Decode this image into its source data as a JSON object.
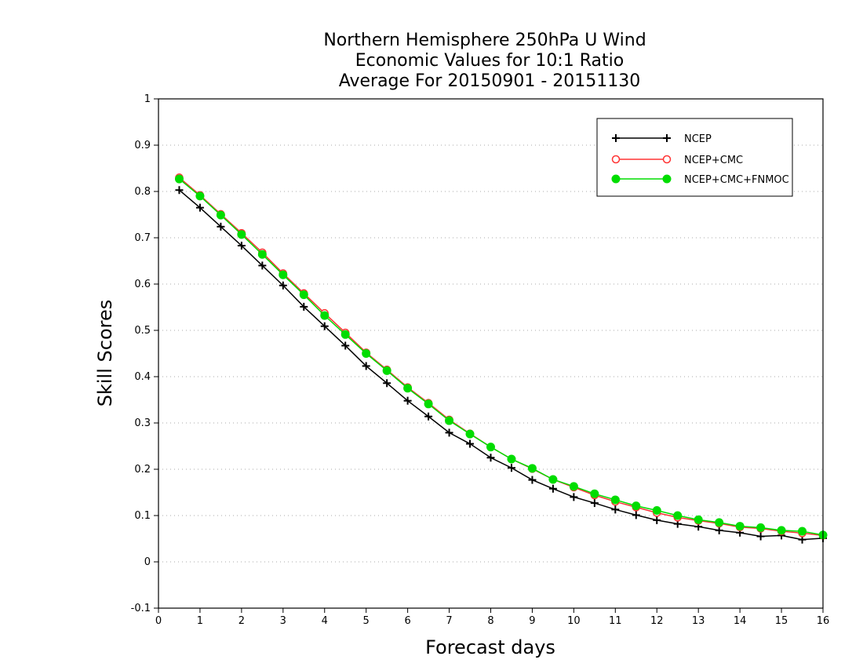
{
  "chart_data": {
    "type": "line",
    "title_lines": [
      "Northern Hemisphere 250hPa U Wind",
      "Economic Values for 10:1 Ratio",
      "Average For 20150901 - 20151130"
    ],
    "xlabel": "Forecast days",
    "ylabel": "Skill Scores",
    "xlim": [
      0,
      16
    ],
    "ylim": [
      -0.1,
      1
    ],
    "xticks": [
      0,
      1,
      2,
      3,
      4,
      5,
      6,
      7,
      8,
      9,
      10,
      11,
      12,
      13,
      14,
      15,
      16
    ],
    "yticks": [
      -0.1,
      0,
      0.1,
      0.2,
      0.3,
      0.4,
      0.5,
      0.6,
      0.7,
      0.8,
      0.9,
      1
    ],
    "ytick_labels": [
      "-0.1",
      "0",
      "0.1",
      "0.2",
      "0.3",
      "0.4",
      "0.5",
      "0.6",
      "0.7",
      "0.8",
      "0.9",
      "1"
    ],
    "grid": "horizontal dotted",
    "legend_position": "top-right",
    "x": [
      0.5,
      1,
      1.5,
      2,
      2.5,
      3,
      3.5,
      4,
      4.5,
      5,
      5.5,
      6,
      6.5,
      7,
      7.5,
      8,
      8.5,
      9,
      9.5,
      10,
      10.5,
      11,
      11.5,
      12,
      12.5,
      13,
      13.5,
      14,
      14.5,
      15,
      15.5,
      16
    ],
    "series": [
      {
        "name": "NCEP",
        "color": "#000000",
        "marker": "plus",
        "values": [
          0.803,
          0.765,
          0.724,
          0.683,
          0.64,
          0.597,
          0.551,
          0.509,
          0.467,
          0.423,
          0.386,
          0.348,
          0.314,
          0.279,
          0.255,
          0.225,
          0.203,
          0.177,
          0.158,
          0.14,
          0.127,
          0.113,
          0.101,
          0.09,
          0.082,
          0.076,
          0.068,
          0.063,
          0.055,
          0.057,
          0.048,
          0.051
        ]
      },
      {
        "name": "NCEP+CMC",
        "color": "#ff3333",
        "marker": "open-circle",
        "values": [
          0.83,
          0.792,
          0.751,
          0.71,
          0.668,
          0.623,
          0.58,
          0.537,
          0.495,
          0.452,
          0.415,
          0.377,
          0.343,
          0.307,
          0.277,
          0.248,
          0.222,
          0.201,
          0.178,
          0.161,
          0.144,
          0.13,
          0.118,
          0.106,
          0.096,
          0.089,
          0.083,
          0.075,
          0.072,
          0.066,
          0.062,
          0.057
        ]
      },
      {
        "name": "NCEP+CMC+FNMOC",
        "color": "#00dd00",
        "marker": "filled-circle",
        "values": [
          0.827,
          0.79,
          0.749,
          0.707,
          0.664,
          0.62,
          0.577,
          0.532,
          0.491,
          0.45,
          0.413,
          0.375,
          0.341,
          0.305,
          0.276,
          0.248,
          0.222,
          0.202,
          0.178,
          0.163,
          0.147,
          0.134,
          0.121,
          0.111,
          0.1,
          0.091,
          0.085,
          0.077,
          0.074,
          0.068,
          0.066,
          0.058
        ]
      }
    ]
  }
}
